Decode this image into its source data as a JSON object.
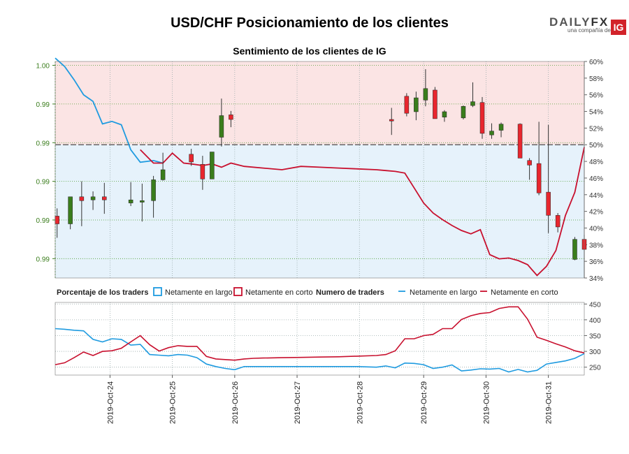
{
  "title": "USD/CHF Posicionamiento de los clientes",
  "brand": {
    "name_part1": "DAILY",
    "name_part2": "FX",
    "tagline": "una compañía de",
    "badge": "IG"
  },
  "chart_data": {
    "type": "candlestick+line",
    "subtitle": "Sentimiento de los clientes de IG",
    "colors": {
      "long_fill": "#e6f2fb",
      "short_fill": "#fbe4e4",
      "long_line": "#1f9be0",
      "short_line": "#c8102e",
      "up_candle": "#3a7d1c",
      "down_candle": "#e8262e"
    },
    "price_axis": {
      "tick_labels": [
        "1.00",
        "0.99",
        "0.99",
        "0.99",
        "0.99",
        "0.99"
      ],
      "tick_values": [
        1.0,
        0.995,
        0.99,
        0.985,
        0.98,
        0.975
      ],
      "range": [
        0.9725,
        1.0005
      ]
    },
    "sentiment_axis": {
      "tick_labels": [
        "60%",
        "58%",
        "56%",
        "54%",
        "52%",
        "50%",
        "48%",
        "46%",
        "44%",
        "42%",
        "40%",
        "38%",
        "36%",
        "34%"
      ],
      "range": [
        34,
        60
      ],
      "reference_line": 50
    },
    "candles": [
      {
        "x": 0.1,
        "o": 0.9805,
        "c": 0.9795,
        "h": 0.9815,
        "l": 0.9777
      },
      {
        "x": 0.8,
        "o": 0.9795,
        "c": 0.983,
        "h": 0.983,
        "l": 0.9788
      },
      {
        "x": 1.4,
        "o": 0.983,
        "c": 0.9825,
        "h": 0.985,
        "l": 0.9792
      },
      {
        "x": 2.0,
        "o": 0.9826,
        "c": 0.983,
        "h": 0.9837,
        "l": 0.9813
      },
      {
        "x": 2.6,
        "o": 0.983,
        "c": 0.9826,
        "h": 0.9848,
        "l": 0.9808
      },
      {
        "x": 4.0,
        "o": 0.9822,
        "c": 0.9826,
        "h": 0.9849,
        "l": 0.9818
      },
      {
        "x": 4.6,
        "o": 0.9823,
        "c": 0.9825,
        "h": 0.9847,
        "l": 0.9798
      },
      {
        "x": 5.2,
        "o": 0.9825,
        "c": 0.9852,
        "h": 0.9857,
        "l": 0.9803
      },
      {
        "x": 5.7,
        "o": 0.9852,
        "c": 0.9865,
        "h": 0.9887,
        "l": 0.9851
      },
      {
        "x": 7.2,
        "o": 0.9885,
        "c": 0.9875,
        "h": 0.9892,
        "l": 0.987
      },
      {
        "x": 7.8,
        "o": 0.9872,
        "c": 0.9853,
        "h": 0.9883,
        "l": 0.9839
      },
      {
        "x": 8.3,
        "o": 0.9853,
        "c": 0.9888,
        "h": 0.9888,
        "l": 0.9853
      },
      {
        "x": 8.8,
        "o": 0.9907,
        "c": 0.9935,
        "h": 0.9957,
        "l": 0.9895
      },
      {
        "x": 9.3,
        "o": 0.9936,
        "c": 0.993,
        "h": 0.9941,
        "l": 0.992
      },
      {
        "x": 17.8,
        "o": 0.993,
        "c": 0.9928,
        "h": 0.9945,
        "l": 0.991
      },
      {
        "x": 18.6,
        "o": 0.996,
        "c": 0.9938,
        "h": 0.9964,
        "l": 0.9934
      },
      {
        "x": 19.1,
        "o": 0.994,
        "c": 0.9958,
        "h": 0.9966,
        "l": 0.9929
      },
      {
        "x": 19.6,
        "o": 0.9955,
        "c": 0.997,
        "h": 0.9995,
        "l": 0.9947
      },
      {
        "x": 20.1,
        "o": 0.9968,
        "c": 0.9931,
        "h": 0.9972,
        "l": 0.9931
      },
      {
        "x": 20.6,
        "o": 0.9933,
        "c": 0.994,
        "h": 0.9942,
        "l": 0.9927
      },
      {
        "x": 21.6,
        "o": 0.9932,
        "c": 0.9947,
        "h": 0.9948,
        "l": 0.993
      },
      {
        "x": 22.1,
        "o": 0.9948,
        "c": 0.9953,
        "h": 0.9978,
        "l": 0.9946
      },
      {
        "x": 22.6,
        "o": 0.9952,
        "c": 0.9912,
        "h": 0.9959,
        "l": 0.9905
      },
      {
        "x": 23.1,
        "o": 0.991,
        "c": 0.9915,
        "h": 0.9925,
        "l": 0.9905
      },
      {
        "x": 23.6,
        "o": 0.9916,
        "c": 0.9924,
        "h": 0.9926,
        "l": 0.9907
      },
      {
        "x": 24.6,
        "o": 0.9924,
        "c": 0.988,
        "h": 0.9925,
        "l": 0.988
      },
      {
        "x": 25.1,
        "o": 0.9877,
        "c": 0.9871,
        "h": 0.988,
        "l": 0.9852
      },
      {
        "x": 25.6,
        "o": 0.9873,
        "c": 0.9835,
        "h": 0.9927,
        "l": 0.9832
      },
      {
        "x": 26.1,
        "o": 0.9836,
        "c": 0.9806,
        "h": 0.9923,
        "l": 0.9783
      },
      {
        "x": 26.6,
        "o": 0.9806,
        "c": 0.9791,
        "h": 0.9809,
        "l": 0.9784
      },
      {
        "x": 27.5,
        "o": 0.9749,
        "c": 0.9775,
        "h": 0.9778,
        "l": 0.9748
      },
      {
        "x": 28.0,
        "o": 0.9775,
        "c": 0.9762,
        "h": 0.9781,
        "l": 0.9725
      }
    ],
    "sentiment_series": [
      {
        "name": "Netamente en largo",
        "t": [
          0,
          0.5,
          1,
          1.5,
          2,
          2.5,
          3,
          3.5,
          4,
          4.5,
          5.2,
          5.7
        ],
        "v": [
          60.4,
          59.4,
          57.8,
          56.0,
          55.2,
          52.5,
          52.8,
          52.4,
          49.4,
          47.9,
          48.1,
          47.8
        ]
      },
      {
        "name": "Netamente en corto",
        "t": [
          4.5,
          5.2,
          5.7,
          6.2,
          6.8,
          7.2,
          7.8,
          8.3,
          8.8,
          9.3,
          10,
          11,
          12,
          13,
          14,
          15,
          16,
          17,
          17.5,
          18,
          18.5,
          19,
          19.5,
          20,
          20.5,
          21,
          21.5,
          22,
          22.5,
          23,
          23.5,
          24,
          24.5,
          25,
          25.5,
          26,
          26.5,
          27,
          27.5,
          28
        ],
        "v": [
          49.4,
          47.8,
          47.8,
          49.0,
          47.8,
          47.7,
          47.5,
          47.7,
          47.3,
          47.8,
          47.4,
          47.2,
          47.0,
          47.4,
          47.3,
          47.2,
          47.1,
          47.0,
          46.9,
          46.8,
          46.6,
          44.8,
          43.0,
          41.8,
          41.0,
          40.3,
          39.7,
          39.3,
          39.8,
          36.8,
          36.3,
          36.4,
          36.1,
          35.6,
          34.3,
          35.4,
          37.3,
          41.5,
          44.3,
          49.7
        ]
      }
    ],
    "panel2": {
      "legend_title_left": "Porcentaje de los traders",
      "legend_title_right": "Numero de traders",
      "legend_long": "Netamente en largo",
      "legend_short": "Netamente en corto",
      "axis_labels": [
        "450",
        "400",
        "350",
        "300",
        "250"
      ],
      "range": [
        225,
        455
      ],
      "long_counts": {
        "t": [
          0,
          0.5,
          1,
          1.5,
          2,
          2.5,
          3,
          3.5,
          4,
          4.5,
          5,
          5.5,
          6,
          6.5,
          7,
          7.5,
          8,
          8.5,
          9,
          9.5,
          10,
          10.5,
          11,
          12,
          13,
          14,
          15,
          16,
          17,
          17.5,
          18,
          18.5,
          19,
          19.5,
          20,
          20.5,
          21,
          21.5,
          22,
          22.5,
          23,
          23.5,
          24,
          24.5,
          25,
          25.5,
          26,
          26.5,
          27,
          27.5,
          28
        ],
        "v": [
          372,
          370,
          367,
          365,
          338,
          330,
          340,
          338,
          320,
          322,
          290,
          288,
          286,
          290,
          288,
          280,
          260,
          252,
          246,
          242,
          252,
          252,
          252,
          252,
          252,
          252,
          252,
          252,
          250,
          254,
          248,
          263,
          262,
          258,
          246,
          250,
          257,
          238,
          241,
          245,
          244,
          246,
          235,
          243,
          235,
          240,
          260,
          265,
          270,
          278,
          293
        ]
      },
      "short_counts": {
        "t": [
          0,
          0.5,
          1,
          1.5,
          2,
          2.5,
          3,
          3.5,
          4,
          4.5,
          5,
          5.5,
          6,
          6.5,
          7,
          7.5,
          8,
          8.5,
          9,
          9.5,
          10,
          10.5,
          11,
          12,
          13,
          14,
          15,
          16,
          17,
          17.5,
          18,
          18.5,
          19,
          19.5,
          20,
          20.5,
          21,
          21.5,
          22,
          22.5,
          23,
          23.5,
          24,
          24.5,
          25,
          25.5,
          26,
          26.5,
          27,
          27.5,
          28
        ],
        "v": [
          258,
          264,
          280,
          298,
          287,
          300,
          302,
          310,
          330,
          350,
          321,
          301,
          312,
          318,
          316,
          316,
          284,
          276,
          274,
          272,
          276,
          278,
          279,
          280,
          281,
          282,
          283,
          285,
          287,
          290,
          302,
          340,
          340,
          350,
          354,
          372,
          372,
          401,
          413,
          420,
          423,
          436,
          441,
          441,
          402,
          345,
          335,
          324,
          314,
          302,
          295
        ]
      }
    },
    "x_axis": {
      "tick_labels": [
        "2019-Oct-24",
        "2019-Oct-25",
        "2019-Oct-26",
        "2019-Oct-27",
        "2019-Oct-28",
        "2019-Oct-29",
        "2019-Oct-30",
        "2019-Oct-31"
      ],
      "tick_positions": [
        2.9,
        6.2,
        9.5,
        12.8,
        16.1,
        19.5,
        22.8,
        26.1
      ],
      "range": [
        0,
        28
      ]
    }
  }
}
